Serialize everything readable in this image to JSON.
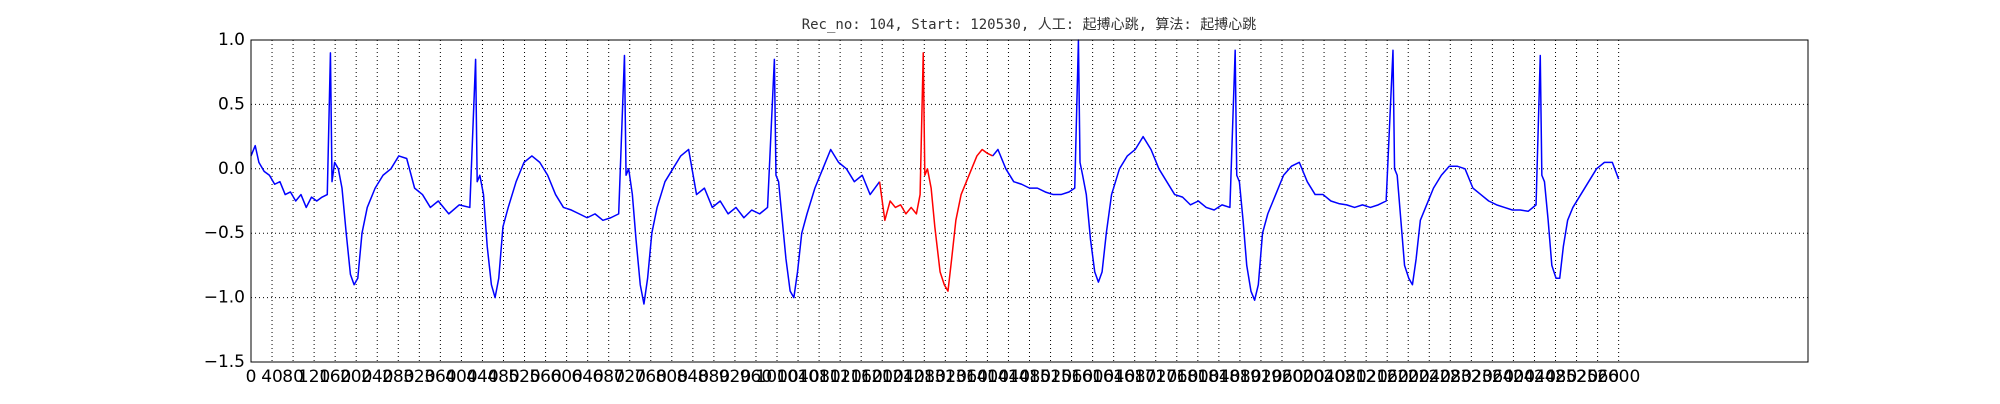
{
  "chart_data": {
    "type": "line",
    "title": "Rec_no: 104, Start: 120530, 人工: 起搏心跳, 算法: 起搏心跳",
    "xlim": [
      0,
      2960
    ],
    "ylim": [
      -1.5,
      1.0
    ],
    "grid": true,
    "xticks": [
      0,
      40,
      80,
      120,
      160,
      200,
      240,
      280,
      320,
      360,
      400,
      440,
      480,
      520,
      560,
      600,
      640,
      680,
      720,
      760,
      800,
      840,
      880,
      920,
      960,
      1000,
      1040,
      1080,
      1120,
      1160,
      1200,
      1240,
      1280,
      1320,
      1360,
      1400,
      1440,
      1480,
      1520,
      1560,
      1600,
      1640,
      1680,
      1720,
      1760,
      1800,
      1840,
      1880,
      1920,
      1960,
      2000,
      2040,
      2080,
      2120,
      2160,
      2200,
      2240,
      2280,
      2320,
      2360,
      2400,
      2440,
      2480,
      2520,
      2560,
      2600
    ],
    "yticks": [
      {
        "value": -1.5,
        "label": "−1.5"
      },
      {
        "value": -1,
        "label": "−1.0"
      },
      {
        "value": -0.5,
        "label": "−0.5"
      },
      {
        "value": 0,
        "label": "0.0"
      },
      0.5,
      {
        "value": 1,
        "label": "1.0"
      }
    ],
    "series": [
      {
        "color": "#0000ff",
        "x": [
          0,
          8,
          15,
          25,
          35,
          45,
          55,
          65,
          75,
          85,
          95,
          105,
          115,
          125,
          135,
          145,
          151,
          154,
          159,
          166,
          173,
          181,
          189,
          196,
          203,
          211,
          221,
          236,
          251,
          266,
          281,
          296,
          311,
          326,
          341,
          356,
          376,
          396,
          416,
          427,
          430,
          435,
          442,
          449,
          457,
          464,
          471,
          479,
          489,
          504,
          519,
          534,
          549,
          564,
          579,
          594,
          609,
          624,
          639,
          654,
          669,
          684,
          699,
          710,
          713,
          718,
          725,
          732,
          740,
          747,
          754,
          762,
          772,
          787,
          802,
          817,
          832,
          847,
          862,
          877,
          892,
          907,
          922,
          937,
          952,
          967,
          982,
          995,
          998,
          1003,
          1010,
          1017,
          1025,
          1032,
          1039,
          1047,
          1057,
          1072,
          1087,
          1102,
          1117,
          1132,
          1147,
          1162,
          1177,
          1195
        ],
        "values": [
          0.1,
          0.18,
          0.05,
          -0.02,
          -0.05,
          -0.12,
          -0.1,
          -0.2,
          -0.18,
          -0.25,
          -0.2,
          -0.3,
          -0.22,
          -0.25,
          -0.22,
          -0.2,
          0.9,
          -0.1,
          0.05,
          0.0,
          -0.15,
          -0.5,
          -0.82,
          -0.9,
          -0.85,
          -0.5,
          -0.3,
          -0.15,
          -0.05,
          0.0,
          0.1,
          0.08,
          -0.15,
          -0.2,
          -0.3,
          -0.25,
          -0.35,
          -0.28,
          -0.3,
          0.85,
          -0.1,
          -0.05,
          -0.2,
          -0.6,
          -0.9,
          -1.0,
          -0.85,
          -0.45,
          -0.3,
          -0.1,
          0.05,
          0.1,
          0.05,
          -0.05,
          -0.2,
          -0.3,
          -0.32,
          -0.35,
          -0.38,
          -0.35,
          -0.4,
          -0.38,
          -0.35,
          0.88,
          -0.05,
          0.0,
          -0.2,
          -0.55,
          -0.9,
          -1.05,
          -0.85,
          -0.5,
          -0.3,
          -0.1,
          0.0,
          0.1,
          0.15,
          -0.2,
          -0.15,
          -0.3,
          -0.25,
          -0.35,
          -0.3,
          -0.38,
          -0.32,
          -0.35,
          -0.3,
          0.85,
          -0.05,
          -0.1,
          -0.4,
          -0.7,
          -0.95,
          -1.0,
          -0.8,
          -0.5,
          -0.35,
          -0.15,
          0.0,
          0.15,
          0.05,
          0.0,
          -0.1,
          -0.05,
          -0.2,
          -0.1
        ]
      },
      {
        "color": "#ff0000",
        "x": [
          1195,
          1205,
          1215,
          1225,
          1235,
          1245,
          1255,
          1265,
          1272,
          1278,
          1281,
          1286,
          1293,
          1300,
          1310,
          1318,
          1325,
          1332,
          1340,
          1350,
          1360,
          1370,
          1380,
          1390,
          1400,
          1410
        ],
        "values": [
          -0.1,
          -0.4,
          -0.25,
          -0.3,
          -0.28,
          -0.35,
          -0.3,
          -0.35,
          -0.2,
          0.9,
          -0.05,
          0.0,
          -0.15,
          -0.45,
          -0.8,
          -0.9,
          -0.95,
          -0.7,
          -0.4,
          -0.2,
          -0.1,
          0.0,
          0.1,
          0.15,
          0.12,
          0.1
        ]
      },
      {
        "color": "#0000ff",
        "x": [
          1410,
          1420,
          1435,
          1450,
          1465,
          1480,
          1495,
          1510,
          1525,
          1540,
          1555,
          1566,
          1573,
          1576,
          1581,
          1588,
          1596,
          1604,
          1611,
          1618,
          1626,
          1636,
          1651,
          1666,
          1681,
          1696,
          1711,
          1726,
          1741,
          1756,
          1771,
          1786,
          1801,
          1816,
          1831,
          1846,
          1861,
          1871,
          1874,
          1879,
          1886,
          1893,
          1901,
          1908,
          1915,
          1923,
          1933,
          1948,
          1963,
          1978,
          1993,
          2008,
          2023,
          2038,
          2053,
          2068,
          2083,
          2098,
          2113,
          2128,
          2143,
          2158,
          2171,
          2174,
          2179,
          2186,
          2193,
          2201,
          2208,
          2215,
          2223,
          2233,
          2248,
          2263,
          2278,
          2293,
          2308,
          2323,
          2338,
          2353,
          2368,
          2383,
          2398,
          2413,
          2428,
          2443,
          2451,
          2454,
          2459,
          2466,
          2473,
          2481,
          2488,
          2495,
          2503,
          2513,
          2528,
          2543,
          2558,
          2573,
          2588,
          2600
        ],
        "values": [
          0.1,
          0.15,
          0.0,
          -0.1,
          -0.12,
          -0.15,
          -0.15,
          -0.18,
          -0.2,
          -0.2,
          -0.18,
          -0.15,
          1.0,
          0.05,
          -0.05,
          -0.2,
          -0.55,
          -0.8,
          -0.88,
          -0.8,
          -0.5,
          -0.2,
          0.0,
          0.1,
          0.15,
          0.25,
          0.15,
          0.0,
          -0.1,
          -0.2,
          -0.22,
          -0.28,
          -0.25,
          -0.3,
          -0.32,
          -0.28,
          -0.3,
          0.92,
          -0.05,
          -0.1,
          -0.4,
          -0.75,
          -0.95,
          -1.02,
          -0.9,
          -0.5,
          -0.35,
          -0.2,
          -0.05,
          0.02,
          0.05,
          -0.1,
          -0.2,
          -0.2,
          -0.25,
          -0.27,
          -0.28,
          -0.3,
          -0.28,
          -0.3,
          -0.28,
          -0.25,
          0.92,
          0.0,
          -0.05,
          -0.4,
          -0.75,
          -0.85,
          -0.9,
          -0.7,
          -0.4,
          -0.3,
          -0.15,
          -0.05,
          0.02,
          0.02,
          0.0,
          -0.15,
          -0.2,
          -0.25,
          -0.28,
          -0.3,
          -0.32,
          -0.32,
          -0.33,
          -0.28,
          0.88,
          -0.05,
          -0.1,
          -0.4,
          -0.75,
          -0.85,
          -0.85,
          -0.6,
          -0.4,
          -0.3,
          -0.2,
          -0.1,
          0.0,
          0.05,
          0.05,
          -0.08
        ]
      }
    ]
  }
}
